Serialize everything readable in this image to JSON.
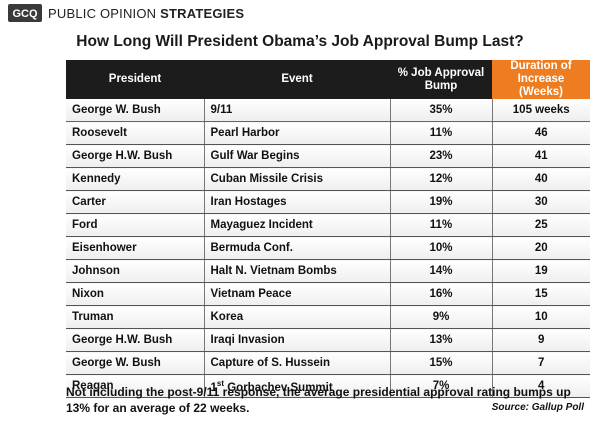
{
  "header": {
    "logo_text": "GCQ",
    "brand_regular": "PUBLIC OPINION",
    "brand_bold": "STRATEGIES"
  },
  "title": "How Long Will President Obama’s Job Approval Bump Last?",
  "table": {
    "headers": [
      "President",
      "Event",
      "% Job Approval Bump",
      "Duration of Increase (Weeks)"
    ],
    "header_lines": {
      "h3a": "% Job Approval",
      "h3b": "Bump",
      "h4a": "Duration of",
      "h4b": "Increase (Weeks)"
    },
    "rows": [
      {
        "president": "George W. Bush",
        "event": "9/11",
        "bump": "35%",
        "duration": "105 weeks"
      },
      {
        "president": "Roosevelt",
        "event": "Pearl Harbor",
        "bump": "11%",
        "duration": "46"
      },
      {
        "president": "George H.W. Bush",
        "event": "Gulf War Begins",
        "bump": "23%",
        "duration": "41"
      },
      {
        "president": "Kennedy",
        "event": "Cuban Missile Crisis",
        "bump": "12%",
        "duration": "40"
      },
      {
        "president": "Carter",
        "event": "Iran Hostages",
        "bump": "19%",
        "duration": "30"
      },
      {
        "president": "Ford",
        "event": "Mayaguez Incident",
        "bump": "11%",
        "duration": "25"
      },
      {
        "president": "Eisenhower",
        "event": "Bermuda Conf.",
        "bump": "10%",
        "duration": "20"
      },
      {
        "president": "Johnson",
        "event": "Halt N. Vietnam Bombs",
        "bump": "14%",
        "duration": "19"
      },
      {
        "president": "Nixon",
        "event": "Vietnam Peace",
        "bump": "16%",
        "duration": "15"
      },
      {
        "president": "Truman",
        "event": "Korea",
        "bump": "9%",
        "duration": "10"
      },
      {
        "president": "George H.W. Bush",
        "event": "Iraqi Invasion",
        "bump": "13%",
        "duration": "9"
      },
      {
        "president": "George W. Bush",
        "event": "Capture of S. Hussein",
        "bump": "15%",
        "duration": "7"
      },
      {
        "president": "Reagan",
        "event_num": "1",
        "event_sup": "st",
        "event_rest": " Gorbachev Summit",
        "bump": "7%",
        "duration": "4"
      }
    ]
  },
  "footnote": "Not including the post-9/11 response, the average presidential approval rating bumps up 13% for an average of 22 weeks.",
  "source": "Source: Gallup Poll",
  "colors": {
    "header_bg": "#1c1c1c",
    "highlight_header_bg": "#ee7d22",
    "text": "#111111"
  }
}
